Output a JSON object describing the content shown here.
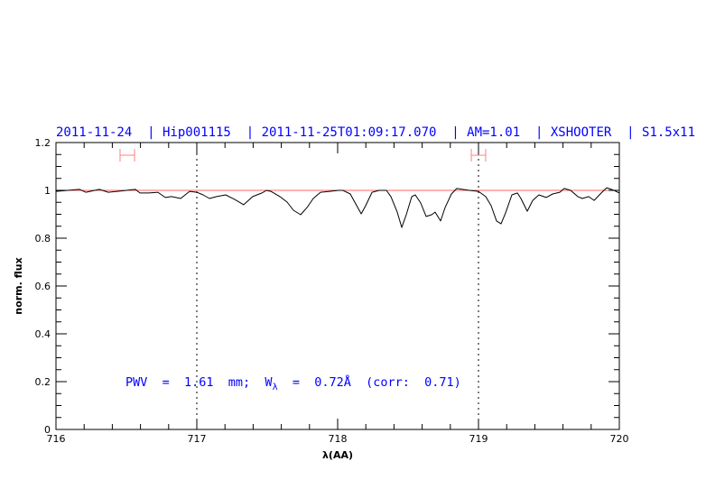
{
  "chart_data": {
    "type": "line",
    "title": "2011-11-24  | Hip001115  | 2011-11-25T01:09:17.070  | AM=1.01  | XSHOOTER  | S1.5x11",
    "xlabel": "λ(AA)",
    "ylabel": "norm. flux",
    "xlim": [
      716,
      720
    ],
    "ylim": [
      0,
      1.2
    ],
    "xticks": [
      "716",
      "717",
      "718",
      "719",
      "720"
    ],
    "yticks": [
      "0",
      "0.2",
      "0.4",
      "0.6",
      "0.8",
      "1",
      "1.2"
    ],
    "grid": false,
    "reference_line": {
      "y": 1.0,
      "color": "#ff6666"
    },
    "vertical_dotted_lines": [
      717,
      719
    ],
    "error_bars": [
      {
        "y": 1.147,
        "xmin": 716.455,
        "xmax": 716.558,
        "color": "#ff8080"
      },
      {
        "y": 1.147,
        "xmin": 718.949,
        "xmax": 719.051,
        "color": "#ff8080"
      }
    ],
    "annotation": {
      "pwv": "PWV  =  1.61  mm;  W",
      "sub": "λ",
      "rest": "  =  0.72Å  (corr:  0.71)"
    },
    "series": [
      {
        "color": "#000000",
        "x": [
          716.0,
          716.083,
          716.167,
          716.212,
          716.308,
          716.372,
          716.436,
          716.5,
          716.564,
          716.596,
          716.66,
          716.724,
          716.776,
          716.821,
          716.885,
          716.949,
          717.0,
          717.045,
          717.09,
          717.141,
          717.205,
          717.269,
          717.333,
          717.397,
          717.462,
          717.494,
          717.526,
          717.59,
          717.641,
          717.686,
          717.737,
          717.782,
          717.827,
          717.878,
          717.942,
          718.006,
          718.038,
          718.09,
          718.135,
          718.167,
          718.199,
          718.244,
          718.295,
          718.346,
          718.378,
          718.423,
          718.455,
          718.487,
          718.526,
          718.551,
          718.59,
          718.628,
          718.667,
          718.692,
          718.731,
          718.763,
          718.808,
          718.846,
          718.885,
          718.936,
          719.0,
          719.051,
          719.09,
          719.128,
          719.16,
          719.192,
          719.237,
          719.276,
          719.301,
          719.346,
          719.385,
          719.429,
          719.481,
          719.526,
          719.577,
          719.609,
          719.654,
          719.705,
          719.737,
          719.782,
          719.821,
          719.872,
          719.91,
          719.962,
          720.0
        ],
        "y": [
          0.996,
          1.0,
          1.004,
          0.992,
          1.004,
          0.992,
          0.996,
          1.0,
          1.004,
          0.989,
          0.989,
          0.992,
          0.97,
          0.974,
          0.966,
          0.996,
          0.992,
          0.981,
          0.966,
          0.974,
          0.981,
          0.962,
          0.94,
          0.974,
          0.989,
          1.0,
          0.996,
          0.974,
          0.951,
          0.917,
          0.898,
          0.928,
          0.966,
          0.992,
          0.996,
          1.0,
          1.0,
          0.985,
          0.936,
          0.902,
          0.936,
          0.992,
          1.0,
          1.0,
          0.974,
          0.909,
          0.845,
          0.898,
          0.974,
          0.981,
          0.947,
          0.891,
          0.898,
          0.909,
          0.872,
          0.928,
          0.985,
          1.008,
          1.004,
          1.0,
          0.996,
          0.974,
          0.936,
          0.872,
          0.86,
          0.906,
          0.981,
          0.989,
          0.966,
          0.913,
          0.958,
          0.981,
          0.97,
          0.985,
          0.992,
          1.008,
          1.0,
          0.974,
          0.966,
          0.974,
          0.958,
          0.989,
          1.011,
          1.0,
          0.989
        ]
      }
    ]
  }
}
